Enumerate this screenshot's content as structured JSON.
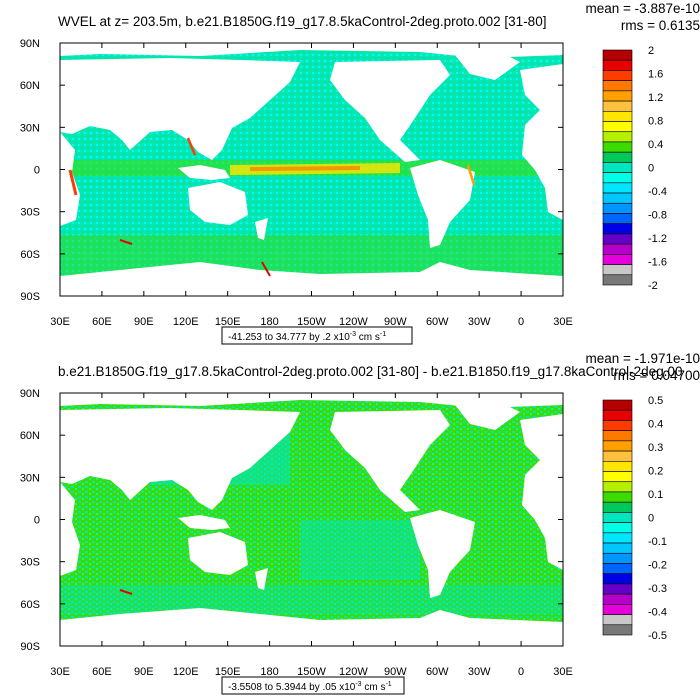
{
  "chart_data": [
    {
      "type": "heatmap",
      "title": "WVEL at z= 203.5m, b.e21.B1850G.f19_g17.8.5kaControl-2deg.proto.002 [31-80]",
      "stats": {
        "mean": "mean = -3.887e-10",
        "rms": "rms = 0.6135"
      },
      "x_ticks": [
        "30E",
        "60E",
        "90E",
        "120E",
        "150E",
        "180",
        "150W",
        "120W",
        "90W",
        "60W",
        "30W",
        "0",
        "30E"
      ],
      "y_ticks": [
        "90N",
        "60N",
        "30N",
        "0",
        "30S",
        "60S",
        "90S"
      ],
      "xlim": [
        30,
        390
      ],
      "ylim": [
        -90,
        90
      ],
      "range_label": {
        "text": "-41.253 to 34.777 by .2 x10",
        "exp": "-3",
        "unit": " cm s",
        "unit_exp": "-1"
      },
      "colorbar": {
        "labels": [
          "2",
          "1.6",
          "1.2",
          "0.8",
          "0.4",
          "0",
          "-0.4",
          "-0.8",
          "-1.2",
          "-1.6",
          "-2"
        ],
        "colors": [
          "#b40000",
          "#e60000",
          "#ff3c00",
          "#ff7800",
          "#ffa000",
          "#ffc040",
          "#ffe600",
          "#ffff00",
          "#b4f000",
          "#3cdc00",
          "#00c85a",
          "#00e6be",
          "#00ffe6",
          "#00e6ff",
          "#00c8ff",
          "#0096ff",
          "#0064ff",
          "#0000e6",
          "#6400c8",
          "#b400c8",
          "#e600dc",
          "#c8c8c8",
          "#787878"
        ]
      }
    },
    {
      "type": "heatmap",
      "title": "b.e21.B1850G.f19_g17.8.5kaControl-2deg.proto.002 [31-80] - b.e21.B1850.f19_g17.8kaControl-2deg.00",
      "stats": {
        "mean": "mean = -1.971e-10",
        "rms": "rms = 0.04700"
      },
      "x_ticks": [
        "30E",
        "60E",
        "90E",
        "120E",
        "150E",
        "180",
        "150W",
        "120W",
        "90W",
        "60W",
        "30W",
        "0",
        "30E"
      ],
      "y_ticks": [
        "90N",
        "60N",
        "30N",
        "0",
        "30S",
        "60S",
        "90S"
      ],
      "xlim": [
        30,
        390
      ],
      "ylim": [
        -90,
        90
      ],
      "range_label": {
        "text": "-3.5508 to 5.3944 by .05 x10",
        "exp": "-3",
        "unit": " cm s",
        "unit_exp": "-1"
      },
      "colorbar": {
        "labels": [
          "0.5",
          "0.4",
          "0.3",
          "0.2",
          "0.1",
          "0",
          "-0.1",
          "-0.2",
          "-0.3",
          "-0.4",
          "-0.5"
        ],
        "colors": [
          "#b40000",
          "#e60000",
          "#ff3c00",
          "#ff7800",
          "#ffa000",
          "#ffc040",
          "#ffe600",
          "#ffff00",
          "#b4f000",
          "#3cdc00",
          "#00c85a",
          "#00e6be",
          "#00ffe6",
          "#00e6ff",
          "#00c8ff",
          "#0096ff",
          "#0064ff",
          "#0000e6",
          "#6400c8",
          "#b400c8",
          "#e600dc",
          "#c8c8c8",
          "#787878"
        ]
      }
    }
  ]
}
